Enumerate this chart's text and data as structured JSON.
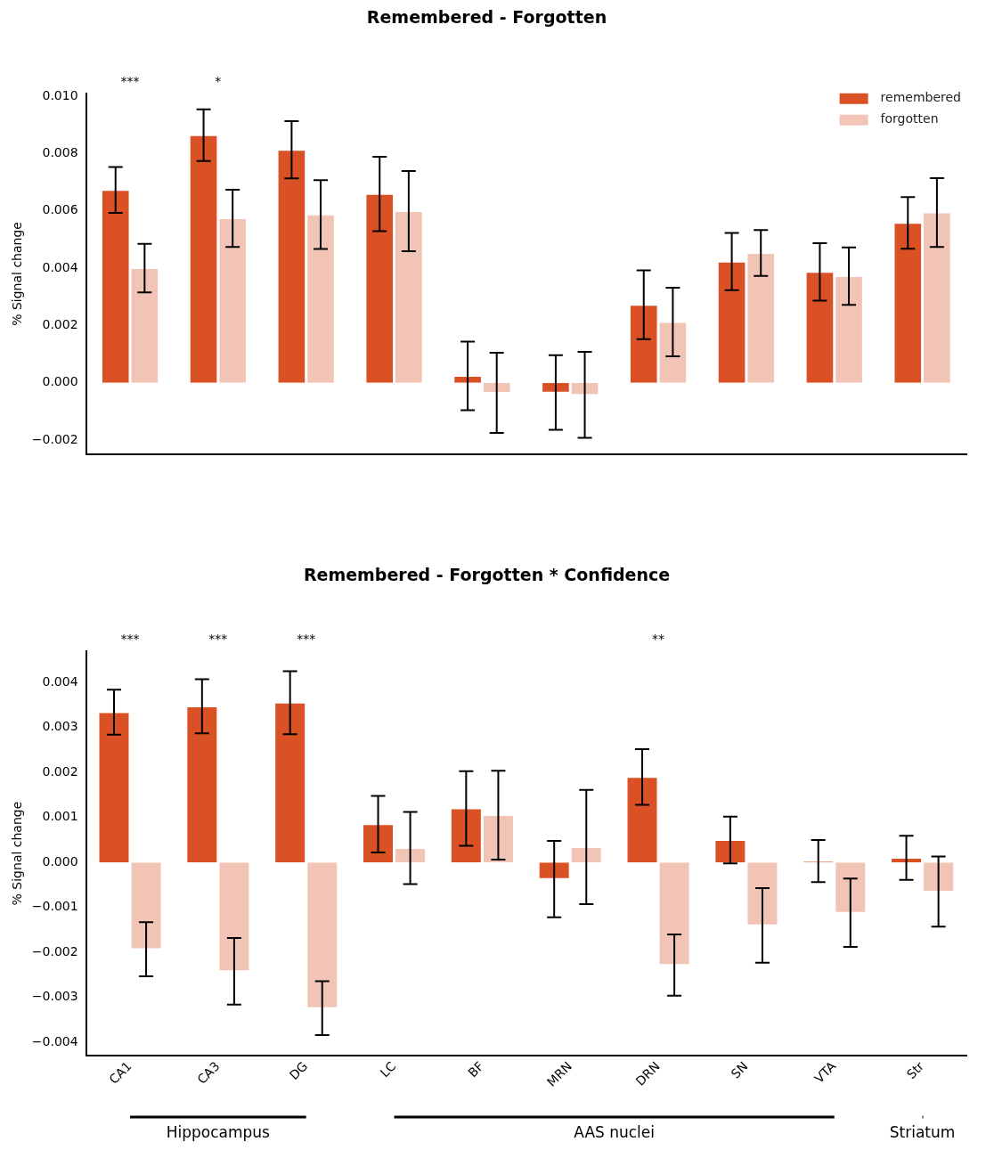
{
  "chart_data": [
    {
      "type": "bar",
      "title": "Remembered - Forgotten",
      "ylabel": "% Signal change",
      "categories": [
        null,
        null,
        null,
        null,
        null,
        null,
        null,
        null,
        null,
        null
      ],
      "legend": "top right",
      "ylim": [
        -0.0025,
        0.0101
      ],
      "yticks": [
        {
          "value": -0.002,
          "label": "−0.002"
        },
        {
          "value": 0,
          "label": "0.000"
        },
        {
          "value": 0.002,
          "label": "0.002"
        },
        {
          "value": 0.004,
          "label": "0.004"
        },
        {
          "value": 0.006,
          "label": "0.006"
        },
        {
          "value": 0.008,
          "label": "0.008"
        },
        {
          "value": 0.01,
          "label": "0.010"
        }
      ],
      "series": [
        {
          "name": "remembered",
          "color": "#d95125",
          "values": [
            0.00673,
            0.00864,
            0.00813,
            0.00659,
            0.00024,
            -0.00034,
            0.00272,
            0.00423,
            0.00387,
            0.00558
          ],
          "errors": [
            0.0008,
            0.0009,
            0.001,
            0.0013,
            0.0012,
            0.0013,
            0.0012,
            0.001,
            0.001,
            0.0009
          ]
        },
        {
          "name": "forgotten",
          "color": "#f2c4b6",
          "values": [
            0.004,
            0.00574,
            0.00587,
            0.00599,
            -0.00035,
            -0.00042,
            0.00212,
            0.00453,
            0.00372,
            0.00594
          ],
          "errors": [
            0.00085,
            0.001,
            0.0012,
            0.0014,
            0.0014,
            0.0015,
            0.0012,
            0.0008,
            0.001,
            0.0012
          ]
        }
      ],
      "annotations": [
        "***",
        "*"
      ]
    },
    {
      "type": "bar",
      "title": "Remembered - Forgotten * Confidence",
      "ylabel": "% Signal change",
      "categories": [
        "CA1",
        "CA3",
        "DG",
        "LC",
        "BF",
        "MRN",
        "DRN",
        "SN",
        "VTA",
        "Str"
      ],
      "ylim": [
        -0.0043,
        0.0047
      ],
      "yticks": [
        {
          "value": -0.004,
          "label": "−0.004"
        },
        {
          "value": -0.003,
          "label": "−0.003"
        },
        {
          "value": -0.002,
          "label": "−0.002"
        },
        {
          "value": -0.001,
          "label": "−0.001"
        },
        {
          "value": 0,
          "label": "0.000"
        },
        {
          "value": 0.001,
          "label": "0.001"
        },
        {
          "value": 0.002,
          "label": "0.002"
        },
        {
          "value": 0.003,
          "label": "0.003"
        },
        {
          "value": 0.004,
          "label": "0.004"
        }
      ],
      "series": [
        {
          "color": "#d95125",
          "values": [
            0.00334,
            0.00347,
            0.00355,
            0.00085,
            0.0012,
            -0.00037,
            0.0019,
            0.0005,
            3e-05,
            0.0001
          ],
          "errors": [
            0.0005,
            0.0006,
            0.0007,
            0.00063,
            0.00083,
            0.00085,
            0.00062,
            0.00052,
            0.00047,
            0.00049
          ]
        },
        {
          "color": "#f2c4b6",
          "values": [
            -0.00193,
            -0.00242,
            -0.00324,
            0.00032,
            0.00105,
            0.00034,
            -0.00228,
            -0.0014,
            -0.00112,
            -0.00065
          ],
          "errors": [
            0.0006,
            0.00074,
            0.0006,
            0.0008,
            0.00099,
            0.00127,
            0.00068,
            0.00083,
            0.00076,
            0.00078
          ]
        }
      ],
      "annotations": [
        "***",
        "***",
        "***",
        "**",
        "Hippocampus",
        "AAS nuclei",
        "Striatum"
      ]
    }
  ]
}
